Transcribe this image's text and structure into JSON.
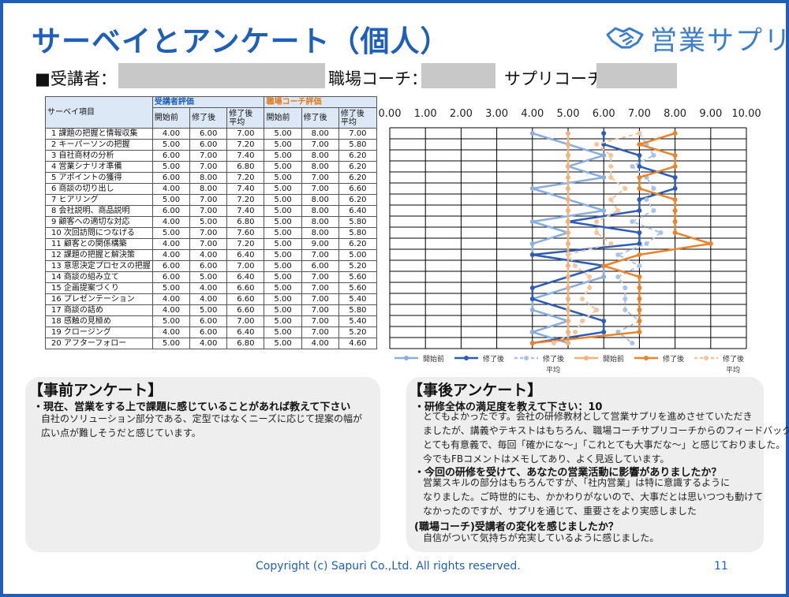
{
  "title": "サーベイとアンケート（個人）",
  "logo": {
    "text": "営業サプリ",
    "icon": "handshake-icon",
    "color": "#3b7dc9"
  },
  "info": {
    "trainee_label": "■受講者：",
    "workplace_coach_label": "職場コーチ：",
    "sapuri_coach_label": "サプリコーチ："
  },
  "table": {
    "item_header": "サーベイ項目",
    "trainee_group": "受講者評価",
    "coach_group": "職場コーチ評価",
    "col_before": "開始前",
    "col_after": "修了後",
    "col_after_avg_1": "修了後",
    "col_after_avg_2": "平均",
    "rows": [
      {
        "no": "1",
        "item": "課題の把握と情報収集",
        "t": [
          "4.00",
          "6.00",
          "7.00"
        ],
        "c": [
          "5.00",
          "8.00",
          "7.00"
        ]
      },
      {
        "no": "2",
        "item": "キーパーソンの把握",
        "t": [
          "5.00",
          "6.00",
          "7.20"
        ],
        "c": [
          "5.00",
          "7.00",
          "5.80"
        ]
      },
      {
        "no": "3",
        "item": "自社商材の分析",
        "t": [
          "6.00",
          "7.00",
          "7.40"
        ],
        "c": [
          "5.00",
          "8.00",
          "6.20"
        ]
      },
      {
        "no": "4",
        "item": "営業シナリオ準備",
        "t": [
          "5.00",
          "7.00",
          "6.80"
        ],
        "c": [
          "5.00",
          "8.00",
          "6.20"
        ]
      },
      {
        "no": "5",
        "item": "アポイントの獲得",
        "t": [
          "6.00",
          "8.00",
          "7.20"
        ],
        "c": [
          "5.00",
          "7.00",
          "6.20"
        ]
      },
      {
        "no": "6",
        "item": "商談の切り出し",
        "t": [
          "4.00",
          "8.00",
          "7.40"
        ],
        "c": [
          "5.00",
          "7.00",
          "6.60"
        ]
      },
      {
        "no": "7",
        "item": "ヒアリング",
        "t": [
          "5.00",
          "7.00",
          "7.20"
        ],
        "c": [
          "5.00",
          "8.00",
          "6.20"
        ]
      },
      {
        "no": "8",
        "item": "会社説明、商品説明",
        "t": [
          "6.00",
          "7.00",
          "7.40"
        ],
        "c": [
          "5.00",
          "8.00",
          "6.40"
        ]
      },
      {
        "no": "9",
        "item": "顧客への適切な対応",
        "t": [
          "4.00",
          "5.00",
          "6.80"
        ],
        "c": [
          "5.00",
          "8.00",
          "5.80"
        ]
      },
      {
        "no": "10",
        "item": "次回訪問につなげる",
        "t": [
          "5.00",
          "7.00",
          "7.60"
        ],
        "c": [
          "5.00",
          "8.00",
          "5.80"
        ]
      },
      {
        "no": "11",
        "item": "顧客との関係構築",
        "t": [
          "4.00",
          "7.00",
          "7.20"
        ],
        "c": [
          "5.00",
          "9.00",
          "6.20"
        ]
      },
      {
        "no": "12",
        "item": "課題の把握と解決策",
        "t": [
          "4.00",
          "4.00",
          "6.40"
        ],
        "c": [
          "5.00",
          "7.00",
          "5.00"
        ]
      },
      {
        "no": "13",
        "item": "意思決定プロセスの把握",
        "t": [
          "6.00",
          "6.00",
          "7.00"
        ],
        "c": [
          "5.00",
          "6.00",
          "5.20"
        ]
      },
      {
        "no": "14",
        "item": "商談の組み立て",
        "t": [
          "6.00",
          "5.00",
          "6.40"
        ],
        "c": [
          "5.00",
          "7.00",
          "5.60"
        ]
      },
      {
        "no": "15",
        "item": "企画提案づくり",
        "t": [
          "5.00",
          "4.00",
          "6.60"
        ],
        "c": [
          "5.00",
          "7.00",
          "5.60"
        ]
      },
      {
        "no": "16",
        "item": "プレゼンテーション",
        "t": [
          "4.00",
          "4.00",
          "6.60"
        ],
        "c": [
          "5.00",
          "7.00",
          "5.40"
        ]
      },
      {
        "no": "17",
        "item": "商談の詰め",
        "t": [
          "4.00",
          "5.00",
          "6.60"
        ],
        "c": [
          "5.00",
          "7.00",
          "5.80"
        ]
      },
      {
        "no": "18",
        "item": "感触の見極め",
        "t": [
          "5.00",
          "6.00",
          "7.00"
        ],
        "c": [
          "5.00",
          "7.00",
          "5.40"
        ]
      },
      {
        "no": "19",
        "item": "クロージング",
        "t": [
          "4.00",
          "6.00",
          "6.40"
        ],
        "c": [
          "5.00",
          "7.00",
          "5.20"
        ]
      },
      {
        "no": "20",
        "item": "アフターフォロー",
        "t": [
          "5.00",
          "4.00",
          "6.80"
        ],
        "c": [
          "5.00",
          "4.00",
          "4.60"
        ]
      }
    ]
  },
  "chart_data": {
    "type": "line",
    "orientation": "horizontal",
    "x_ticks": [
      "0.00",
      "1.00",
      "2.00",
      "3.00",
      "4.00",
      "5.00",
      "6.00",
      "7.00",
      "8.00",
      "9.00",
      "10.00"
    ],
    "xlim": [
      0,
      10
    ],
    "categories": [
      "1",
      "2",
      "3",
      "4",
      "5",
      "6",
      "7",
      "8",
      "9",
      "10",
      "11",
      "12",
      "13",
      "14",
      "15",
      "16",
      "17",
      "18",
      "19",
      "20"
    ],
    "series": [
      {
        "name": "開始前",
        "group": "受講者",
        "color": "#8aaee0",
        "style": "solid",
        "values": [
          4,
          5,
          6,
          5,
          6,
          4,
          5,
          6,
          4,
          5,
          4,
          4,
          6,
          6,
          5,
          4,
          4,
          5,
          4,
          5
        ]
      },
      {
        "name": "修了後",
        "group": "受講者",
        "color": "#2e5db8",
        "style": "solid",
        "values": [
          6,
          6,
          7,
          7,
          8,
          8,
          7,
          7,
          5,
          7,
          7,
          4,
          6,
          5,
          4,
          4,
          5,
          6,
          6,
          4
        ]
      },
      {
        "name": "修了後平均",
        "group": "受講者",
        "color": "#a9c2e8",
        "style": "dashed",
        "values": [
          7.0,
          7.2,
          7.4,
          6.8,
          7.2,
          7.4,
          7.2,
          7.4,
          6.8,
          7.6,
          7.2,
          6.4,
          7.0,
          6.4,
          6.6,
          6.6,
          6.6,
          7.0,
          6.4,
          6.8
        ]
      },
      {
        "name": "開始前",
        "group": "職場コーチ",
        "color": "#f2b27a",
        "style": "solid",
        "values": [
          5,
          5,
          5,
          5,
          5,
          5,
          5,
          5,
          5,
          5,
          5,
          5,
          5,
          5,
          5,
          5,
          5,
          5,
          5,
          5
        ]
      },
      {
        "name": "修了後",
        "group": "職場コーチ",
        "color": "#e8842c",
        "style": "solid",
        "values": [
          8,
          7,
          8,
          8,
          7,
          7,
          8,
          8,
          8,
          8,
          9,
          7,
          6,
          7,
          7,
          7,
          7,
          7,
          7,
          4
        ]
      },
      {
        "name": "修了後平均",
        "group": "職場コーチ",
        "color": "#f5c49c",
        "style": "dashed",
        "values": [
          7.0,
          5.8,
          6.2,
          6.2,
          6.2,
          6.6,
          6.2,
          6.4,
          5.8,
          5.8,
          6.2,
          5.0,
          5.2,
          5.6,
          5.6,
          5.4,
          5.8,
          5.4,
          5.2,
          4.6
        ]
      }
    ],
    "legend": [
      {
        "label": "開始前",
        "color": "#8aaee0",
        "style": "solid"
      },
      {
        "label": "修了後",
        "color": "#2e5db8",
        "style": "solid"
      },
      {
        "label": "修了後",
        "label2": "平均",
        "color": "#a9c2e8",
        "style": "dashed"
      },
      {
        "label": "開始前",
        "color": "#f2b27a",
        "style": "solid"
      },
      {
        "label": "修了後",
        "color": "#e8842c",
        "style": "solid"
      },
      {
        "label": "修了後",
        "label2": "平均",
        "color": "#f5c49c",
        "style": "dashed"
      }
    ],
    "legend_position": "bottom"
  },
  "pre_survey": {
    "title": "【事前アンケート】",
    "question": "・現在、営業をする上で課題に感じていることがあれば教えて下さい",
    "answer": [
      "自社のソリューション部分である、定型ではなくニーズに応じて提案の幅が",
      "広い点が難しそうだと感じています。"
    ]
  },
  "post_survey": {
    "title": "【事後アンケート】",
    "q1": "・研修全体の満足度を教えて下さい：10",
    "a1": [
      "とてもよかったです。会社の研修教材として営業サプリを進めさせていただき",
      "ましたが、講義やテキストはもちろん、職場コーチサプリコーチからのフィードバックが",
      "とても有意義で、毎回「確かにな～」「これとても大事だな～」と感じておりました。",
      "今でもFBコメントはメモしてあり、よく見返しています。"
    ],
    "q2": "・今回の研修を受けて、あなたの営業活動に影響がありましたか？",
    "a2": [
      "営業スキルの部分はもちろんですが、「社内営業」は特に意識するように",
      "なりました。ご時世的にも、かかわりがないので、大事だとは思いつつも動けて",
      "なかったのですが、サプリを通じて、重要さをより実感しました"
    ],
    "q3": "(職場コーチ)受講者の変化を感じましたか？",
    "a3": [
      "自信がついて気持ちが充実しているように感じました。"
    ]
  },
  "footer": {
    "copyright": "Copyright (c) Sapuri Co.,Ltd. All rights reserved.",
    "page": "11"
  }
}
